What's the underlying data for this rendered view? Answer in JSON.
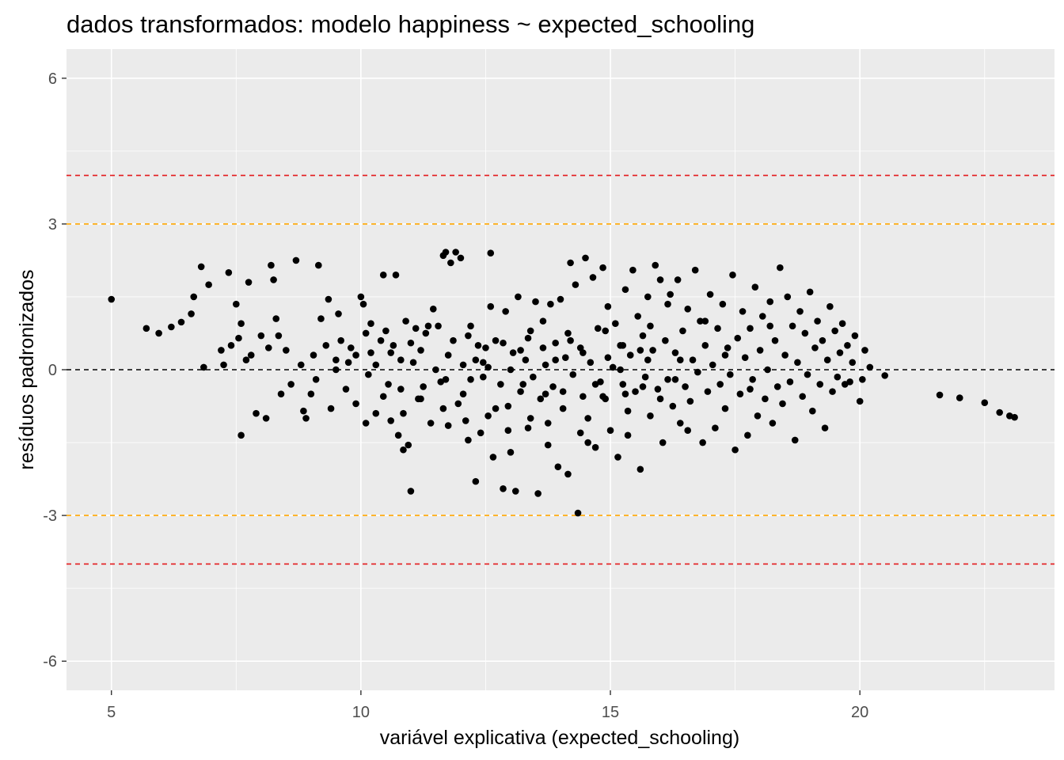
{
  "chart_data": {
    "type": "scatter",
    "title": "dados transformados: modelo happiness ~ expected_schooling",
    "xlabel": "variável explicativa (expected_schooling)",
    "ylabel": "resíduos padronizados",
    "xlim": [
      4.1,
      23.9
    ],
    "ylim": [
      -6.6,
      6.6
    ],
    "x_ticks": [
      5,
      10,
      15,
      20
    ],
    "y_ticks": [
      -6,
      -3,
      0,
      3,
      6
    ],
    "x_tick_labels": [
      "5",
      "10",
      "15",
      "20"
    ],
    "y_tick_labels": [
      "-6",
      "-3",
      "0",
      "3",
      "6"
    ],
    "grid": true,
    "background": "#ebebeb",
    "point_color": "#000000",
    "reference_lines": [
      {
        "y": 4,
        "color": "#e31a1c",
        "style": "dashed"
      },
      {
        "y": 3,
        "color": "#ffa500",
        "style": "dashed"
      },
      {
        "y": 0,
        "color": "#000000",
        "style": "dashed"
      },
      {
        "y": -3,
        "color": "#ffa500",
        "style": "dashed"
      },
      {
        "y": -4,
        "color": "#e31a1c",
        "style": "dashed"
      }
    ],
    "points": [
      [
        5.0,
        1.45
      ],
      [
        5.7,
        0.85
      ],
      [
        5.95,
        0.75
      ],
      [
        6.2,
        0.88
      ],
      [
        6.4,
        0.98
      ],
      [
        6.6,
        1.15
      ],
      [
        6.65,
        1.5
      ],
      [
        6.8,
        2.12
      ],
      [
        6.85,
        0.05
      ],
      [
        6.95,
        1.75
      ],
      [
        7.2,
        0.4
      ],
      [
        7.25,
        0.1
      ],
      [
        7.35,
        2.0
      ],
      [
        7.4,
        0.5
      ],
      [
        7.5,
        1.35
      ],
      [
        7.55,
        0.65
      ],
      [
        7.6,
        0.95
      ],
      [
        7.6,
        -1.35
      ],
      [
        7.7,
        0.2
      ],
      [
        7.75,
        1.8
      ],
      [
        7.8,
        0.3
      ],
      [
        7.9,
        -0.9
      ],
      [
        8.0,
        0.7
      ],
      [
        8.1,
        -1.0
      ],
      [
        8.15,
        0.45
      ],
      [
        8.2,
        2.15
      ],
      [
        8.25,
        1.85
      ],
      [
        8.3,
        1.05
      ],
      [
        8.35,
        0.7
      ],
      [
        8.4,
        -0.5
      ],
      [
        8.5,
        0.4
      ],
      [
        8.6,
        -0.3
      ],
      [
        8.7,
        2.25
      ],
      [
        8.8,
        0.1
      ],
      [
        8.85,
        -0.85
      ],
      [
        8.9,
        -1.0
      ],
      [
        9.0,
        -0.5
      ],
      [
        9.05,
        0.3
      ],
      [
        9.1,
        -0.2
      ],
      [
        9.15,
        2.15
      ],
      [
        9.2,
        1.05
      ],
      [
        9.3,
        0.5
      ],
      [
        9.4,
        -0.8
      ],
      [
        9.5,
        0.2
      ],
      [
        9.55,
        1.15
      ],
      [
        9.6,
        0.6
      ],
      [
        9.7,
        -0.4
      ],
      [
        9.8,
        0.45
      ],
      [
        9.9,
        -0.7
      ],
      [
        10.0,
        1.5
      ],
      [
        10.05,
        1.35
      ],
      [
        10.1,
        0.75
      ],
      [
        10.15,
        -0.1
      ],
      [
        10.2,
        0.35
      ],
      [
        10.3,
        -0.9
      ],
      [
        10.4,
        0.6
      ],
      [
        10.45,
        1.95
      ],
      [
        10.5,
        0.8
      ],
      [
        10.55,
        -0.3
      ],
      [
        10.6,
        -1.05
      ],
      [
        10.65,
        0.5
      ],
      [
        10.7,
        1.95
      ],
      [
        10.75,
        -1.35
      ],
      [
        10.8,
        0.2
      ],
      [
        10.85,
        -1.65
      ],
      [
        10.9,
        1.0
      ],
      [
        11.0,
        -2.5
      ],
      [
        11.05,
        0.15
      ],
      [
        11.1,
        0.85
      ],
      [
        11.15,
        -0.6
      ],
      [
        11.2,
        0.4
      ],
      [
        11.3,
        0.75
      ],
      [
        11.4,
        -1.1
      ],
      [
        11.45,
        1.25
      ],
      [
        11.5,
        0.0
      ],
      [
        11.55,
        0.9
      ],
      [
        11.6,
        -0.25
      ],
      [
        11.65,
        2.35
      ],
      [
        11.7,
        2.42
      ],
      [
        11.75,
        -1.15
      ],
      [
        11.8,
        2.2
      ],
      [
        11.85,
        0.6
      ],
      [
        11.9,
        2.42
      ],
      [
        11.95,
        -0.7
      ],
      [
        12.0,
        2.3
      ],
      [
        12.05,
        0.1
      ],
      [
        12.1,
        -1.05
      ],
      [
        12.15,
        0.7
      ],
      [
        12.2,
        -0.2
      ],
      [
        12.3,
        -2.3
      ],
      [
        12.35,
        0.5
      ],
      [
        12.4,
        -1.3
      ],
      [
        12.45,
        0.15
      ],
      [
        12.5,
        0.45
      ],
      [
        12.55,
        -0.95
      ],
      [
        12.6,
        2.4
      ],
      [
        12.65,
        -1.8
      ],
      [
        12.7,
        0.6
      ],
      [
        12.8,
        -0.3
      ],
      [
        12.85,
        -2.45
      ],
      [
        12.9,
        1.2
      ],
      [
        12.95,
        -0.75
      ],
      [
        13.0,
        -1.7
      ],
      [
        13.05,
        0.35
      ],
      [
        13.1,
        -2.5
      ],
      [
        13.15,
        1.5
      ],
      [
        13.2,
        -0.45
      ],
      [
        13.3,
        0.2
      ],
      [
        13.35,
        -1.2
      ],
      [
        13.4,
        0.8
      ],
      [
        13.45,
        -0.15
      ],
      [
        13.5,
        1.4
      ],
      [
        13.55,
        -2.55
      ],
      [
        13.6,
        -0.6
      ],
      [
        13.65,
        1.0
      ],
      [
        13.7,
        0.1
      ],
      [
        13.75,
        -1.55
      ],
      [
        13.8,
        1.35
      ],
      [
        13.85,
        -0.35
      ],
      [
        13.9,
        0.55
      ],
      [
        13.95,
        -2.0
      ],
      [
        14.0,
        1.45
      ],
      [
        14.05,
        -0.8
      ],
      [
        14.1,
        0.25
      ],
      [
        14.15,
        -2.15
      ],
      [
        14.2,
        2.2
      ],
      [
        14.25,
        -0.1
      ],
      [
        14.3,
        1.75
      ],
      [
        14.35,
        -2.95
      ],
      [
        14.4,
        0.45
      ],
      [
        14.45,
        -0.55
      ],
      [
        14.5,
        2.3
      ],
      [
        14.55,
        -1.0
      ],
      [
        14.6,
        0.15
      ],
      [
        14.65,
        1.9
      ],
      [
        14.7,
        -1.6
      ],
      [
        14.75,
        0.85
      ],
      [
        14.8,
        -0.25
      ],
      [
        14.85,
        2.1
      ],
      [
        14.9,
        -0.6
      ],
      [
        14.95,
        1.3
      ],
      [
        15.0,
        -1.25
      ],
      [
        15.05,
        0.05
      ],
      [
        15.1,
        0.95
      ],
      [
        15.15,
        -1.8
      ],
      [
        15.2,
        0.5
      ],
      [
        15.25,
        -0.3
      ],
      [
        15.3,
        1.65
      ],
      [
        15.35,
        -0.85
      ],
      [
        15.4,
        0.3
      ],
      [
        15.45,
        2.05
      ],
      [
        15.5,
        -0.45
      ],
      [
        15.55,
        1.1
      ],
      [
        15.6,
        -2.05
      ],
      [
        15.65,
        0.7
      ],
      [
        15.7,
        -0.15
      ],
      [
        15.75,
        1.5
      ],
      [
        15.8,
        -0.95
      ],
      [
        15.85,
        0.4
      ],
      [
        15.9,
        2.15
      ],
      [
        15.95,
        -0.4
      ],
      [
        16.0,
        1.85
      ],
      [
        16.05,
        -1.5
      ],
      [
        16.1,
        0.6
      ],
      [
        16.15,
        -0.2
      ],
      [
        16.2,
        1.55
      ],
      [
        16.25,
        -0.75
      ],
      [
        16.3,
        0.35
      ],
      [
        16.35,
        1.85
      ],
      [
        16.4,
        -1.1
      ],
      [
        16.45,
        0.8
      ],
      [
        16.5,
        -0.35
      ],
      [
        16.55,
        1.25
      ],
      [
        16.6,
        -0.65
      ],
      [
        16.65,
        0.2
      ],
      [
        16.7,
        2.05
      ],
      [
        16.75,
        -0.05
      ],
      [
        16.8,
        1.0
      ],
      [
        16.85,
        -1.5
      ],
      [
        16.9,
        0.5
      ],
      [
        16.95,
        -0.45
      ],
      [
        17.0,
        1.55
      ],
      [
        17.05,
        0.1
      ],
      [
        17.1,
        -1.2
      ],
      [
        17.15,
        0.85
      ],
      [
        17.2,
        -0.3
      ],
      [
        17.25,
        1.35
      ],
      [
        17.3,
        -0.8
      ],
      [
        17.35,
        0.45
      ],
      [
        17.4,
        -0.1
      ],
      [
        17.45,
        1.95
      ],
      [
        17.5,
        -1.65
      ],
      [
        17.55,
        0.65
      ],
      [
        17.6,
        -0.5
      ],
      [
        17.65,
        1.2
      ],
      [
        17.7,
        0.25
      ],
      [
        17.75,
        -1.35
      ],
      [
        17.8,
        0.85
      ],
      [
        17.85,
        -0.2
      ],
      [
        17.9,
        1.7
      ],
      [
        17.95,
        -0.95
      ],
      [
        18.0,
        0.4
      ],
      [
        18.05,
        1.1
      ],
      [
        18.1,
        -0.6
      ],
      [
        18.15,
        0.0
      ],
      [
        18.2,
        1.4
      ],
      [
        18.25,
        -1.1
      ],
      [
        18.3,
        0.6
      ],
      [
        18.35,
        -0.35
      ],
      [
        18.4,
        2.1
      ],
      [
        18.45,
        -0.7
      ],
      [
        18.5,
        0.3
      ],
      [
        18.55,
        1.5
      ],
      [
        18.6,
        -0.25
      ],
      [
        18.65,
        0.9
      ],
      [
        18.7,
        -1.45
      ],
      [
        18.75,
        0.15
      ],
      [
        18.8,
        1.2
      ],
      [
        18.85,
        -0.55
      ],
      [
        18.9,
        0.75
      ],
      [
        18.95,
        -0.1
      ],
      [
        19.0,
        1.6
      ],
      [
        19.05,
        -0.85
      ],
      [
        19.1,
        0.45
      ],
      [
        19.15,
        1.0
      ],
      [
        19.2,
        -0.3
      ],
      [
        19.25,
        0.6
      ],
      [
        19.3,
        -1.2
      ],
      [
        19.35,
        0.2
      ],
      [
        19.4,
        1.3
      ],
      [
        19.45,
        -0.45
      ],
      [
        19.5,
        0.8
      ],
      [
        19.55,
        -0.15
      ],
      [
        19.6,
        0.35
      ],
      [
        19.65,
        0.95
      ],
      [
        19.7,
        -0.3
      ],
      [
        19.75,
        0.5
      ],
      [
        19.8,
        -0.25
      ],
      [
        19.85,
        0.15
      ],
      [
        19.9,
        0.7
      ],
      [
        20.0,
        -0.65
      ],
      [
        20.05,
        -0.2
      ],
      [
        20.1,
        0.4
      ],
      [
        20.2,
        0.05
      ],
      [
        20.5,
        -0.12
      ],
      [
        21.6,
        -0.52
      ],
      [
        22.0,
        -0.58
      ],
      [
        22.5,
        -0.68
      ],
      [
        22.8,
        -0.88
      ],
      [
        23.0,
        -0.95
      ],
      [
        23.1,
        -0.98
      ],
      [
        9.5,
        0.0
      ],
      [
        9.9,
        0.3
      ],
      [
        10.3,
        0.1
      ],
      [
        10.8,
        -0.4
      ],
      [
        11.2,
        -0.6
      ],
      [
        11.7,
        -0.2
      ],
      [
        12.3,
        0.2
      ],
      [
        12.7,
        -0.8
      ],
      [
        13.2,
        0.4
      ],
      [
        13.7,
        -0.5
      ],
      [
        14.2,
        0.6
      ],
      [
        14.7,
        -0.3
      ],
      [
        15.2,
        0.0
      ],
      [
        15.6,
        0.4
      ],
      [
        16.0,
        -0.6
      ],
      [
        16.4,
        0.2
      ],
      [
        16.9,
        1.0
      ],
      [
        17.3,
        0.3
      ],
      [
        17.8,
        -0.4
      ],
      [
        18.2,
        0.9
      ],
      [
        12.2,
        0.9
      ],
      [
        12.6,
        1.3
      ],
      [
        13.0,
        0.0
      ],
      [
        13.4,
        -1.0
      ],
      [
        13.9,
        0.2
      ],
      [
        14.4,
        -1.3
      ],
      [
        14.9,
        0.8
      ],
      [
        15.3,
        -0.5
      ],
      [
        15.8,
        0.9
      ],
      [
        16.3,
        -0.2
      ],
      [
        12.05,
        -0.5
      ],
      [
        12.45,
        -0.15
      ],
      [
        12.85,
        0.55
      ],
      [
        13.25,
        -0.3
      ],
      [
        13.65,
        0.45
      ],
      [
        14.05,
        -0.45
      ],
      [
        14.45,
        0.35
      ],
      [
        14.85,
        -0.55
      ],
      [
        15.25,
        0.5
      ],
      [
        15.65,
        -0.35
      ],
      [
        10.95,
        -1.55
      ],
      [
        11.35,
        0.9
      ],
      [
        11.75,
        0.3
      ],
      [
        12.15,
        -1.45
      ],
      [
        12.55,
        0.05
      ],
      [
        12.95,
        -1.25
      ],
      [
        13.35,
        0.65
      ],
      [
        13.75,
        -1.1
      ],
      [
        14.15,
        0.75
      ],
      [
        14.55,
        -1.5
      ],
      [
        14.95,
        0.25
      ],
      [
        15.35,
        -1.35
      ],
      [
        15.75,
        0.2
      ],
      [
        16.15,
        1.35
      ],
      [
        16.55,
        -1.25
      ],
      [
        10.1,
        -1.1
      ],
      [
        10.45,
        -0.55
      ],
      [
        10.85,
        -0.9
      ],
      [
        11.25,
        -0.35
      ],
      [
        11.65,
        -0.8
      ],
      [
        9.35,
        1.45
      ],
      [
        9.75,
        0.15
      ],
      [
        10.2,
        0.95
      ],
      [
        10.6,
        0.35
      ],
      [
        11.0,
        0.55
      ]
    ]
  }
}
